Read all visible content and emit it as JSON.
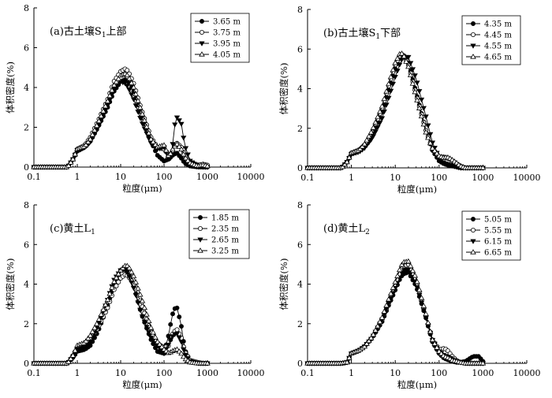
{
  "chart_data": [
    {
      "type": "line",
      "title": "(a)古土壤S1上部",
      "title_main": "(a)古土壤S",
      "title_sub": "1",
      "title_suffix": "上部",
      "xlabel": "粒度(μm)",
      "ylabel": "体积密度(%)",
      "xscale": "log",
      "xlim": [
        0.1,
        10000
      ],
      "ylim": [
        0,
        8
      ],
      "xticks": [
        "0.1",
        "1",
        "10",
        "100",
        "1000",
        "10000"
      ],
      "yticks": [
        "0",
        "2",
        "4",
        "6",
        "8"
      ],
      "legend_position": "top-right",
      "x": [
        0.1,
        0.3,
        0.6,
        0.8,
        1.0,
        1.5,
        2.0,
        3.0,
        5.0,
        7.0,
        10,
        13,
        15,
        20,
        30,
        50,
        70,
        100,
        130,
        150,
        170,
        200,
        250,
        300,
        400,
        600,
        800,
        1000
      ],
      "series": [
        {
          "name": "3.65 m",
          "marker": "filled-circle",
          "values": [
            0,
            0,
            0,
            0.4,
            0.8,
            1.0,
            1.3,
            2.0,
            3.0,
            3.8,
            4.3,
            4.4,
            4.3,
            3.8,
            2.6,
            1.3,
            0.6,
            0.3,
            0.4,
            0.55,
            0.65,
            0.7,
            0.45,
            0.2,
            0.05,
            0,
            0,
            0
          ]
        },
        {
          "name": "3.75 m",
          "marker": "open-circle",
          "values": [
            0,
            0,
            0,
            0.4,
            0.9,
            1.1,
            1.5,
            2.3,
            3.4,
            4.3,
            4.8,
            4.95,
            4.8,
            4.2,
            2.9,
            1.5,
            1.0,
            0.9,
            0.6,
            0.7,
            1.0,
            1.2,
            1.0,
            0.6,
            0.25,
            0.1,
            0.15,
            0.1
          ]
        },
        {
          "name": "3.95 m",
          "marker": "filled-triangle-down",
          "values": [
            0,
            0,
            0,
            0.4,
            0.85,
            1.0,
            1.3,
            2.0,
            3.1,
            3.9,
            4.3,
            4.2,
            4.0,
            3.4,
            2.3,
            1.2,
            0.9,
            1.0,
            0.4,
            0.5,
            2.0,
            2.5,
            2.2,
            1.1,
            0.3,
            0.05,
            0,
            0
          ]
        },
        {
          "name": "4.05 m",
          "marker": "open-triangle",
          "values": [
            0,
            0,
            0,
            0.4,
            0.9,
            1.05,
            1.4,
            2.2,
            3.3,
            4.1,
            4.6,
            4.7,
            4.55,
            4.0,
            2.8,
            1.4,
            1.0,
            1.1,
            0.5,
            0.8,
            1.0,
            1.15,
            0.9,
            0.5,
            0.2,
            0.05,
            0.1,
            0.05
          ]
        }
      ]
    },
    {
      "type": "line",
      "title": "(b)古土壤S1下部",
      "title_main": "(b)古土壤S",
      "title_sub": "1",
      "title_suffix": "下部",
      "xlabel": "粒度(μm)",
      "ylabel": "体积密度(%)",
      "xscale": "log",
      "xlim": [
        0.1,
        10000
      ],
      "ylim": [
        0,
        8
      ],
      "xticks": [
        "0.1",
        "1",
        "10",
        "100",
        "1000",
        "10000"
      ],
      "yticks": [
        "0",
        "2",
        "4",
        "6",
        "8"
      ],
      "legend_position": "top-right",
      "x": [
        0.1,
        0.3,
        0.6,
        0.8,
        1.0,
        1.5,
        2.0,
        3.0,
        5.0,
        7.0,
        10,
        13,
        15,
        20,
        30,
        50,
        70,
        100,
        130,
        150,
        170,
        200,
        250,
        300,
        400,
        600,
        800,
        1000
      ],
      "series": [
        {
          "name": "4.35 m",
          "marker": "filled-circle",
          "values": [
            0,
            0,
            0,
            0.3,
            0.7,
            0.85,
            1.1,
            1.7,
            2.8,
            3.9,
            5.0,
            5.6,
            5.75,
            5.3,
            3.8,
            1.9,
            0.9,
            0.35,
            0.2,
            0.15,
            0.12,
            0.1,
            0.05,
            0,
            0,
            0,
            0,
            0
          ]
        },
        {
          "name": "4.45 m",
          "marker": "open-circle",
          "values": [
            0,
            0,
            0,
            0.3,
            0.75,
            0.9,
            1.15,
            1.8,
            3.0,
            4.1,
            5.2,
            5.7,
            5.75,
            5.2,
            3.7,
            1.9,
            1.0,
            0.55,
            0.55,
            0.5,
            0.45,
            0.35,
            0.2,
            0.1,
            0,
            0,
            0,
            0
          ]
        },
        {
          "name": "4.55 m",
          "marker": "filled-triangle-down",
          "values": [
            0,
            0,
            0,
            0.3,
            0.7,
            0.8,
            1.0,
            1.5,
            2.5,
            3.5,
            4.6,
            5.3,
            5.6,
            5.6,
            4.5,
            2.6,
            1.3,
            0.5,
            0.25,
            0.2,
            0.15,
            0.1,
            0.05,
            0,
            0,
            0,
            0,
            0
          ]
        },
        {
          "name": "4.65 m",
          "marker": "open-triangle",
          "values": [
            0,
            0,
            0,
            0.3,
            0.75,
            0.9,
            1.2,
            1.9,
            3.1,
            4.2,
            5.3,
            5.8,
            5.75,
            5.1,
            3.6,
            1.8,
            1.0,
            0.6,
            0.5,
            0.55,
            0.5,
            0.4,
            0.25,
            0.1,
            0,
            0,
            0,
            0
          ]
        }
      ]
    },
    {
      "type": "line",
      "title": "(c)黄土L1",
      "title_main": "(c)黄土L",
      "title_sub": "1",
      "title_suffix": "",
      "xlabel": "粒度(μm)",
      "ylabel": "体积密度(%)",
      "xscale": "log",
      "xlim": [
        0.1,
        10000
      ],
      "ylim": [
        0,
        8
      ],
      "xticks": [
        "0.1",
        "1",
        "10",
        "100",
        "1000",
        "10000"
      ],
      "yticks": [
        "0",
        "2",
        "4",
        "6",
        "8"
      ],
      "legend_position": "top-right",
      "x": [
        0.1,
        0.3,
        0.6,
        0.8,
        1.0,
        1.5,
        2.0,
        3.0,
        5.0,
        7.0,
        10,
        13,
        15,
        20,
        30,
        50,
        70,
        100,
        130,
        150,
        170,
        200,
        250,
        300,
        400,
        600,
        800,
        1000
      ],
      "series": [
        {
          "name": "1.85 m",
          "marker": "filled-circle",
          "values": [
            0,
            0,
            0,
            0.3,
            0.6,
            0.7,
            0.9,
            1.6,
            2.9,
            4.0,
            4.7,
            4.8,
            4.6,
            3.9,
            2.5,
            1.2,
            0.6,
            0.5,
            1.5,
            2.3,
            2.75,
            2.8,
            1.9,
            0.7,
            0.1,
            0,
            0,
            0
          ]
        },
        {
          "name": "2.35 m",
          "marker": "open-circle",
          "values": [
            0,
            0,
            0,
            0.4,
            0.8,
            0.95,
            1.2,
            1.8,
            2.8,
            3.7,
            4.3,
            4.5,
            4.4,
            4.0,
            3.0,
            1.6,
            1.0,
            0.8,
            0.9,
            1.4,
            1.6,
            1.7,
            1.3,
            0.6,
            0.15,
            0.05,
            0,
            0
          ]
        },
        {
          "name": "2.65 m",
          "marker": "filled-triangle-down",
          "values": [
            0,
            0,
            0,
            0.35,
            0.7,
            0.85,
            1.1,
            1.9,
            3.2,
            4.2,
            4.7,
            4.7,
            4.5,
            3.8,
            2.5,
            1.3,
            0.9,
            0.5,
            1.0,
            1.3,
            1.45,
            1.5,
            1.1,
            0.5,
            0.1,
            0,
            0,
            0
          ]
        },
        {
          "name": "3.25 m",
          "marker": "open-triangle",
          "values": [
            0,
            0,
            0,
            0.4,
            0.9,
            1.05,
            1.4,
            2.1,
            3.2,
            4.1,
            4.7,
            4.95,
            4.9,
            4.4,
            3.3,
            1.8,
            1.1,
            0.7,
            0.5,
            0.6,
            0.65,
            0.7,
            0.5,
            0.25,
            0.05,
            0,
            0,
            0
          ]
        }
      ]
    },
    {
      "type": "line",
      "title": "(d)黄土L2",
      "title_main": "(d)黄土L",
      "title_sub": "2",
      "title_suffix": "",
      "xlabel": "粒度(μm)",
      "ylabel": "体积密度(%)",
      "xscale": "log",
      "xlim": [
        0.1,
        10000
      ],
      "ylim": [
        0,
        8
      ],
      "xticks": [
        "0.1",
        "1",
        "10",
        "100",
        "1000",
        "10000"
      ],
      "yticks": [
        "0",
        "2",
        "4",
        "6",
        "8"
      ],
      "legend_position": "top-right",
      "x": [
        0.1,
        0.3,
        0.6,
        0.8,
        1.0,
        1.5,
        2.0,
        3.0,
        5.0,
        7.0,
        10,
        13,
        15,
        20,
        30,
        50,
        70,
        100,
        130,
        150,
        170,
        200,
        250,
        300,
        400,
        600,
        800,
        1000
      ],
      "series": [
        {
          "name": "5.05 m",
          "marker": "filled-circle",
          "values": [
            0,
            0,
            0,
            0.05,
            0.5,
            0.65,
            0.85,
            1.3,
            2.1,
            2.9,
            3.7,
            4.3,
            4.5,
            4.6,
            3.9,
            2.3,
            1.1,
            0.5,
            0.25,
            0.2,
            0.15,
            0.1,
            0.05,
            0.05,
            0.1,
            0.35,
            0.35,
            0.1
          ]
        },
        {
          "name": "5.55 m",
          "marker": "open-circle",
          "values": [
            0,
            0,
            0,
            0.05,
            0.5,
            0.65,
            0.85,
            1.3,
            2.2,
            3.0,
            3.9,
            4.6,
            4.9,
            5.0,
            4.2,
            2.4,
            1.2,
            0.7,
            0.75,
            0.7,
            0.55,
            0.35,
            0.15,
            0.05,
            0,
            0,
            0,
            0
          ]
        },
        {
          "name": "6.15 m",
          "marker": "filled-triangle-down",
          "values": [
            0,
            0,
            0,
            0.05,
            0.5,
            0.65,
            0.85,
            1.3,
            2.2,
            3.0,
            3.8,
            4.4,
            4.7,
            4.75,
            4.0,
            2.3,
            1.2,
            0.6,
            0.4,
            0.35,
            0.3,
            0.2,
            0.1,
            0.05,
            0,
            0,
            0,
            0
          ]
        },
        {
          "name": "6.65 m",
          "marker": "open-triangle",
          "values": [
            0,
            0,
            0,
            0.05,
            0.5,
            0.65,
            0.85,
            1.35,
            2.3,
            3.2,
            4.1,
            4.8,
            5.1,
            5.15,
            4.3,
            2.5,
            1.2,
            0.6,
            0.35,
            0.3,
            0.25,
            0.15,
            0.1,
            0.05,
            0,
            0,
            0,
            0
          ]
        }
      ]
    }
  ]
}
